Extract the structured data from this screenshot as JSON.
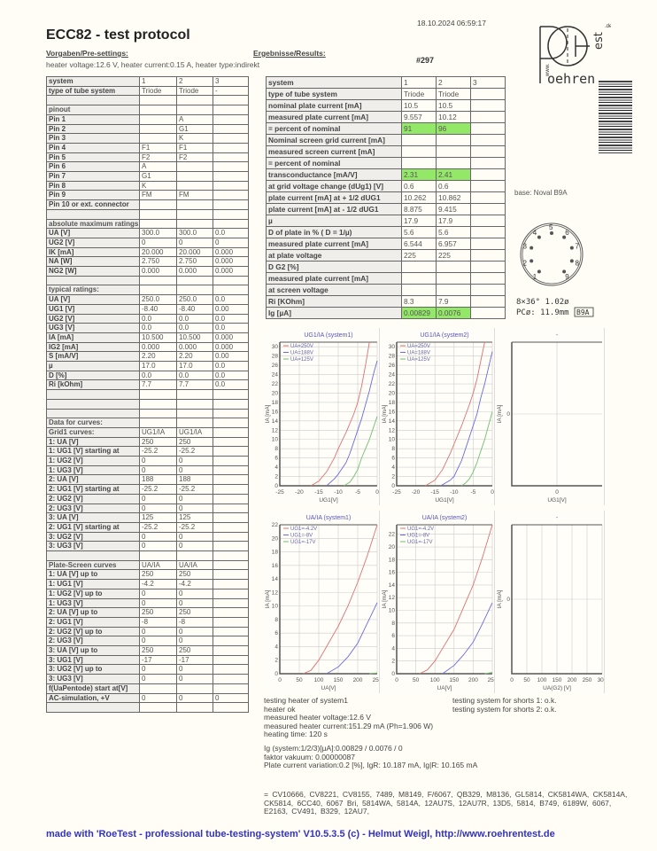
{
  "header": {
    "title": "ECC82  -  test protocol",
    "datetime": "18.10.2024  06:59:17",
    "pre_settings_label": "Vorgaben/Pre-settings:",
    "results_label": "Ergebnisse/Results:",
    "heater_info": "heater voltage:12.6 V, heater current:0.15 A, heater type:indirekt",
    "test_number": "#297"
  },
  "logo": {
    "text": "www.Roehrentest.de"
  },
  "left_table": {
    "rows": [
      [
        "system",
        "1",
        "2",
        "3"
      ],
      [
        "type of tube system",
        "Triode",
        "Triode",
        "-"
      ],
      [
        "",
        "",
        "",
        ""
      ],
      [
        "pinout",
        "",
        "",
        "",
        "sec"
      ],
      [
        "Pin 1",
        "",
        "A",
        ""
      ],
      [
        "Pin 2",
        "",
        "G1",
        ""
      ],
      [
        "Pin 3",
        "",
        "K",
        ""
      ],
      [
        "Pin 4",
        "F1",
        "F1",
        ""
      ],
      [
        "Pin 5",
        "F2",
        "F2",
        ""
      ],
      [
        "Pin 6",
        "A",
        "",
        ""
      ],
      [
        "Pin 7",
        "G1",
        "",
        ""
      ],
      [
        "Pin 8",
        "K",
        "",
        ""
      ],
      [
        "Pin 9",
        "FM",
        "FM",
        ""
      ],
      [
        "Pin 10 or ext. connector",
        "",
        "",
        ""
      ],
      [
        "",
        "",
        "",
        ""
      ],
      [
        "absolute maximum ratings",
        "",
        "",
        "",
        "sec"
      ],
      [
        "UA [V]",
        "300.0",
        "300.0",
        "0.0"
      ],
      [
        "UG2 [V]",
        "0",
        "0",
        "0"
      ],
      [
        "IK [mA]",
        "20.000",
        "20.000",
        "0.000"
      ],
      [
        "NA [W]",
        "2.750",
        "2.750",
        "0.000"
      ],
      [
        "NG2 [W]",
        "0.000",
        "0.000",
        "0.000"
      ],
      [
        "",
        "",
        "",
        ""
      ],
      [
        "typical ratings:",
        "",
        "",
        "",
        "sec"
      ],
      [
        "UA [V]",
        "250.0",
        "250.0",
        "0.0"
      ],
      [
        "UG1 [V]",
        "-8.40",
        "-8.40",
        "0.00"
      ],
      [
        "UG2 [V]",
        "0.0",
        "0.0",
        "0.0"
      ],
      [
        "UG3 [V]",
        "0.0",
        "0.0",
        "0.0"
      ],
      [
        "IA [mA]",
        "10.500",
        "10.500",
        "0.000"
      ],
      [
        "IG2 [mA]",
        "0.000",
        "0.000",
        "0.000"
      ],
      [
        "S [mA/V]",
        "2.20",
        "2.20",
        "0.00"
      ],
      [
        "µ",
        "17.0",
        "17.0",
        "0.0"
      ],
      [
        "D [%]",
        "0.0",
        "0.0",
        "0.0"
      ],
      [
        "Ri [kOhm]",
        "7.7",
        "7.7",
        "0.0"
      ],
      [
        "",
        "",
        "",
        ""
      ],
      [
        "",
        "",
        "",
        ""
      ],
      [
        "",
        "",
        "",
        ""
      ],
      [
        "Data for curves:",
        "",
        "",
        "",
        "sec"
      ],
      [
        "Grid1 curves:",
        "UG1/IA",
        "UG1/IA",
        "",
        "sec"
      ],
      [
        "1: UA [V]",
        "250",
        "250",
        ""
      ],
      [
        "1: UG1 [V] starting at",
        "-25.2",
        "-25.2",
        ""
      ],
      [
        "1: UG2 [V]",
        "0",
        "0",
        ""
      ],
      [
        "1: UG3 [V]",
        "0",
        "0",
        ""
      ],
      [
        "2: UA [V]",
        "188",
        "188",
        ""
      ],
      [
        "2: UG1 [V] starting at",
        "-25.2",
        "-25.2",
        ""
      ],
      [
        "2: UG2 [V]",
        "0",
        "0",
        ""
      ],
      [
        "2: UG3 [V]",
        "0",
        "0",
        ""
      ],
      [
        "3: UA [V]",
        "125",
        "125",
        ""
      ],
      [
        "2: UG1 [V] starting at",
        "-25.2",
        "-25.2",
        ""
      ],
      [
        "3: UG2 [V]",
        "0",
        "0",
        ""
      ],
      [
        "3: UG3 [V]",
        "0",
        "0",
        ""
      ],
      [
        "",
        "",
        "",
        ""
      ],
      [
        "Plate-Screen curves",
        "UA/IA",
        "UA/IA",
        "",
        "sec"
      ],
      [
        "1: UA [V] up to",
        "250",
        "250",
        ""
      ],
      [
        "1: UG1 [V]",
        "-4.2",
        "-4.2",
        ""
      ],
      [
        "1: UG2 [V] up to",
        "0",
        "0",
        ""
      ],
      [
        "1: UG3 [V]",
        "0",
        "0",
        ""
      ],
      [
        "2: UA [V] up to",
        "250",
        "250",
        ""
      ],
      [
        "2: UG1 [V]",
        "-8",
        "-8",
        ""
      ],
      [
        "2: UG2 [V] up to",
        "0",
        "0",
        ""
      ],
      [
        "2: UG3 [V]",
        "0",
        "0",
        ""
      ],
      [
        "3: UA [V] up to",
        "250",
        "250",
        ""
      ],
      [
        "3: UG1 [V]",
        "-17",
        "-17",
        ""
      ],
      [
        "3: UG2 [V] up to",
        "0",
        "0",
        ""
      ],
      [
        "3: UG3 [V]",
        "0",
        "0",
        ""
      ],
      [
        "f(UaPentode) start at[V]",
        "",
        "",
        ""
      ],
      [
        "AC-simulation, +V",
        "0",
        "0",
        "0"
      ],
      [
        "",
        "",
        "",
        ""
      ]
    ]
  },
  "right_table": {
    "highlight_color": "#93e867",
    "rows": [
      [
        "system",
        "1",
        "2",
        "3"
      ],
      [
        "type of tube system",
        "Triode",
        "Triode",
        ""
      ],
      [
        "nominal plate current [mA]",
        "10.5",
        "10.5",
        ""
      ],
      [
        "measured plate current [mA]",
        "9.557",
        "10.12",
        ""
      ],
      [
        "= percent of nominal",
        "91",
        "96",
        "",
        "hl"
      ],
      [
        "Nominal screen grid current [mA]",
        "",
        "",
        ""
      ],
      [
        "measured screen current [mA]",
        "",
        "",
        ""
      ],
      [
        "= percent of nominal",
        "",
        "",
        ""
      ],
      [
        "transconductance [mA/V]",
        "2.31",
        "2.41",
        "",
        "hl"
      ],
      [
        "at grid voltage change (dUg1) [V]",
        "0.6",
        "0.6",
        ""
      ],
      [
        "plate current [mA] at + 1/2 dUG1",
        "10.262",
        "10.862",
        ""
      ],
      [
        "plate current [mA] at - 1/2 dUG1",
        "8.875",
        "9.415",
        ""
      ],
      [
        "µ",
        "17.9",
        "17.9",
        ""
      ],
      [
        "D of plate in % ( D = 1/µ)",
        "5.6",
        "5.6",
        ""
      ],
      [
        "measured plate current [mA]",
        "6.544",
        "6.957",
        ""
      ],
      [
        "at plate voltage",
        "225",
        "225",
        ""
      ],
      [
        "D G2 [%]",
        "",
        "",
        ""
      ],
      [
        "measured plate current [mA]",
        "",
        "",
        ""
      ],
      [
        "at screen voltage",
        "",
        "",
        ""
      ],
      [
        "Ri [KOhm]",
        "8.3",
        "7.9",
        ""
      ],
      [
        "Ig [µA]",
        "0.00829",
        "0.0076",
        "",
        "hl"
      ]
    ]
  },
  "base": {
    "label": "base: Noval B9A",
    "pins": [
      "1",
      "2",
      "3",
      "4",
      "5",
      "6",
      "7",
      "8",
      "9"
    ],
    "spec_line1": "8×36°  1.02ø",
    "spec_line2": "PCø: 11.9mm",
    "badge": "B9A"
  },
  "chart_data": [
    {
      "type": "line",
      "title": "UG1/IA (system1)",
      "xlabel": "UG1[V]",
      "ylabel": "IA [mA]",
      "xlim": [
        -25,
        0
      ],
      "ylim": [
        0,
        31
      ],
      "xticks": [
        -25,
        -20,
        -15,
        -10,
        -5,
        0
      ],
      "yticks": [
        0,
        2,
        4,
        6,
        8,
        10,
        12,
        14,
        16,
        18,
        20,
        22,
        24,
        26,
        28,
        30
      ],
      "grid": true,
      "legend": "top-left",
      "series": [
        {
          "name": "UA=250V",
          "color": "#e07070",
          "x": [
            -17,
            -15,
            -13,
            -11,
            -10,
            -8,
            -6,
            -5,
            -4,
            -3,
            -2
          ],
          "y": [
            0,
            1,
            3,
            6,
            8,
            11.5,
            15.5,
            18,
            21.5,
            26,
            31
          ]
        },
        {
          "name": "UA=188V",
          "color": "#6a6ae0",
          "x": [
            -13,
            -11,
            -10,
            -8,
            -7,
            -5,
            -4,
            -3,
            -2,
            -1,
            0
          ],
          "y": [
            0,
            1.5,
            2.5,
            5,
            7,
            12,
            14.5,
            17.5,
            20.5,
            24,
            27
          ]
        },
        {
          "name": "UA=125V",
          "color": "#70c070",
          "x": [
            -8.5,
            -7,
            -6,
            -5,
            -4,
            -3,
            -2,
            -1,
            0
          ],
          "y": [
            0,
            0.8,
            2,
            3.5,
            6,
            8,
            10,
            12.5,
            15
          ]
        }
      ]
    },
    {
      "type": "line",
      "title": "UG1/IA (system2)",
      "xlabel": "UG1[V]",
      "ylabel": "IA [mA]",
      "xlim": [
        -25,
        0
      ],
      "ylim": [
        0,
        31
      ],
      "xticks": [
        -25,
        -20,
        -15,
        -10,
        -5,
        0
      ],
      "yticks": [
        0,
        2,
        4,
        6,
        8,
        10,
        12,
        14,
        16,
        18,
        20,
        22,
        24,
        26,
        28,
        30
      ],
      "grid": true,
      "legend": "top-left",
      "series": [
        {
          "name": "UA=250V",
          "color": "#e07070",
          "x": [
            -17.5,
            -15,
            -13,
            -11,
            -10,
            -8,
            -6,
            -5,
            -4,
            -3,
            -2
          ],
          "y": [
            0,
            1.2,
            3.5,
            7,
            9,
            13,
            17.5,
            20,
            23,
            27,
            31
          ]
        },
        {
          "name": "UA=188V",
          "color": "#6a6ae0",
          "x": [
            -13.5,
            -11,
            -10,
            -8,
            -7,
            -5,
            -4,
            -3,
            -2,
            -1,
            0
          ],
          "y": [
            0,
            1.2,
            2,
            5.5,
            8,
            13,
            15.5,
            19,
            22,
            25.5,
            29
          ]
        },
        {
          "name": "UA=125V",
          "color": "#70c070",
          "x": [
            -8,
            -7,
            -6,
            -5,
            -4,
            -3,
            -2,
            -1,
            0
          ],
          "y": [
            0,
            0.6,
            1.5,
            3,
            5,
            7.5,
            10,
            13,
            16
          ]
        }
      ]
    },
    {
      "type": "line",
      "title": "-",
      "xlabel": "UG1[V]",
      "ylabel": "IA [mA]",
      "xticks": [
        0
      ],
      "yticks": [
        0
      ],
      "grid": true,
      "series": []
    },
    {
      "type": "line",
      "title": "UA/IA (system1)",
      "xlabel": "UA[V]",
      "ylabel": "IA [mA]",
      "xlim": [
        0,
        250
      ],
      "ylim": [
        0,
        22
      ],
      "xticks": [
        0,
        50,
        100,
        150,
        200,
        250
      ],
      "yticks": [
        0,
        2,
        4,
        6,
        8,
        10,
        12,
        14,
        16,
        18,
        20,
        22
      ],
      "grid": true,
      "legend": "top-left",
      "series": [
        {
          "name": "UG1=-4.2V",
          "color": "#e07070",
          "x": [
            60,
            80,
            100,
            125,
            150,
            175,
            200,
            225,
            250
          ],
          "y": [
            0,
            0.5,
            2,
            4.5,
            7,
            10,
            13.5,
            17.5,
            22
          ]
        },
        {
          "name": "UG1=-8V",
          "color": "#6a6ae0",
          "x": [
            120,
            150,
            175,
            200,
            225,
            250
          ],
          "y": [
            0,
            1,
            2.5,
            4.5,
            7.5,
            10.5
          ]
        },
        {
          "name": "UG1=-17V",
          "color": "#70c070",
          "x": [
            230,
            250
          ],
          "y": [
            0,
            0.1
          ]
        }
      ]
    },
    {
      "type": "line",
      "title": "UA/IA (system2)",
      "xlabel": "UA[V]",
      "ylabel": "IA [mA]",
      "xlim": [
        0,
        250
      ],
      "ylim": [
        0,
        23.5
      ],
      "xticks": [
        0,
        50,
        100,
        150,
        200,
        250
      ],
      "yticks": [
        0,
        2,
        4,
        6,
        8,
        10,
        12,
        14,
        16,
        18,
        20,
        22
      ],
      "grid": true,
      "legend": "top-left",
      "series": [
        {
          "name": "UG1=-4.2V",
          "color": "#e07070",
          "x": [
            60,
            80,
            100,
            125,
            150,
            175,
            200,
            225,
            250
          ],
          "y": [
            0,
            0.6,
            2,
            4.5,
            7,
            10.5,
            14,
            18.5,
            23.5
          ]
        },
        {
          "name": "UG1=-8V",
          "color": "#6a6ae0",
          "x": [
            120,
            150,
            175,
            200,
            225,
            250
          ],
          "y": [
            0,
            1.3,
            3,
            5,
            8,
            11.2
          ]
        },
        {
          "name": "UG1=-17V",
          "color": "#70c070",
          "x": [
            230,
            250
          ],
          "y": [
            0,
            0.2
          ]
        }
      ]
    },
    {
      "type": "line",
      "title": "-",
      "xlabel": "UA(G2) [V]",
      "ylabel": "IA [mA]",
      "xticks": [
        0,
        50,
        100,
        150,
        200,
        250,
        300
      ],
      "yticks": [
        0
      ],
      "grid": true,
      "series": []
    }
  ],
  "footer": {
    "heater_lines": [
      "testing heater of system1",
      "heater ok",
      "measured heater voltage:12.6 V",
      "measured heater current:151.29 mA (Ph=1.906 W)",
      "heating time: 120 s"
    ],
    "shorts_lines": [
      "testing system for shorts 1: o.k.",
      "testing system for shorts 2: o.k."
    ],
    "ig_lines": [
      "Ig (system:1/2/3)[µA]:0.00829 / 0.0076 / 0",
      "faktor vakuum: 0.00000087",
      "Plate current variation:0.2 [%], IgR: 10.187 mA, Ig|R: 10.165 mA"
    ],
    "equivalents": "= CV10666,  CV8221,  CV8155,  7489,  M8149,  F/6067,  QB329,  M8136,  GL5814,  CK5814WA,  CK5814A,  CK5814,  6CC40,  6067 Bri,  5814WA,  5814A,  12AU7S,  12AU7R,  13D5,  5814,  B749,  6189W,  6067,  E2163,  CV491,  B329,  12AU7,",
    "made_with": "made with 'RoeTest - professional tube-testing-system' V10.5.3.5 (c) - Helmut Weigl, http://www.roehrentest.de"
  }
}
